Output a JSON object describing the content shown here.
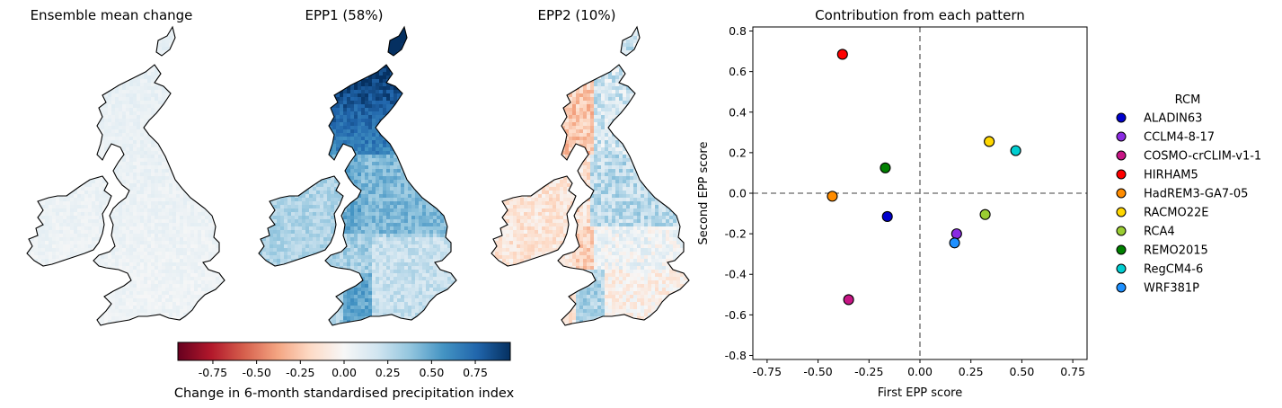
{
  "maps": [
    {
      "title": "Ensemble mean change",
      "style": "mean"
    },
    {
      "title": "EPP1 (58%)",
      "style": "epp1"
    },
    {
      "title": "EPP2 (10%)",
      "style": "epp2"
    }
  ],
  "colorbar": {
    "label": "Change in 6-month standardised precipitation index",
    "min": -0.95,
    "max": 0.95,
    "ticks": [
      "-0.75",
      "-0.50",
      "-0.25",
      "0.00",
      "0.25",
      "0.50",
      "0.75"
    ],
    "tick_values": [
      -0.75,
      -0.5,
      -0.25,
      0,
      0.25,
      0.5,
      0.75
    ],
    "colormap": "RdBu",
    "colors": [
      "#67001f",
      "#b2182b",
      "#d6604d",
      "#f4a582",
      "#fddbc7",
      "#f7f7f7",
      "#d1e5f0",
      "#92c5de",
      "#4393c3",
      "#2166ac",
      "#053061"
    ]
  },
  "chart_data": {
    "type": "scatter",
    "title": "Contribution from each pattern",
    "xlabel": "First EPP score",
    "ylabel": "Second EPP score",
    "xlim": [
      -0.82,
      0.82
    ],
    "ylim": [
      -0.82,
      0.82
    ],
    "xticks": [
      "-0.75",
      "-0.50",
      "-0.25",
      "0.00",
      "0.25",
      "0.50",
      "0.75"
    ],
    "xtick_values": [
      -0.75,
      -0.5,
      -0.25,
      0,
      0.25,
      0.5,
      0.75
    ],
    "yticks": [
      "-0.8",
      "-0.6",
      "-0.4",
      "-0.2",
      "0.0",
      "0.2",
      "0.4",
      "0.6",
      "0.8"
    ],
    "ytick_values": [
      -0.8,
      -0.6,
      -0.4,
      -0.2,
      0,
      0.2,
      0.4,
      0.6,
      0.8
    ],
    "reference_lines": {
      "x": 0,
      "y": 0,
      "style": "dashed",
      "color": "#808080"
    },
    "grid": false,
    "legend": {
      "title": "RCM",
      "placement": "right, outside"
    },
    "series": [
      {
        "name": "ALADIN63",
        "color": "#0000cd",
        "x": -0.16,
        "y": -0.115
      },
      {
        "name": "CCLM4-8-17",
        "color": "#8a2be2",
        "x": 0.18,
        "y": -0.2
      },
      {
        "name": "COSMO-crCLIM-v1-1",
        "color": "#c71585",
        "x": -0.35,
        "y": -0.525
      },
      {
        "name": "HIRHAM5",
        "color": "#ff0000",
        "x": -0.38,
        "y": 0.685
      },
      {
        "name": "HadREM3-GA7-05",
        "color": "#ff8c00",
        "x": -0.43,
        "y": -0.015
      },
      {
        "name": "RACMO22E",
        "color": "#ffd700",
        "x": 0.34,
        "y": 0.255
      },
      {
        "name": "RCA4",
        "color": "#9acd32",
        "x": 0.32,
        "y": -0.105
      },
      {
        "name": "REMO2015",
        "color": "#008000",
        "x": -0.17,
        "y": 0.125
      },
      {
        "name": "RegCM4-6",
        "color": "#00ced1",
        "x": 0.47,
        "y": 0.21
      },
      {
        "name": "WRF381P",
        "color": "#1e90ff",
        "x": 0.17,
        "y": -0.245
      }
    ]
  }
}
